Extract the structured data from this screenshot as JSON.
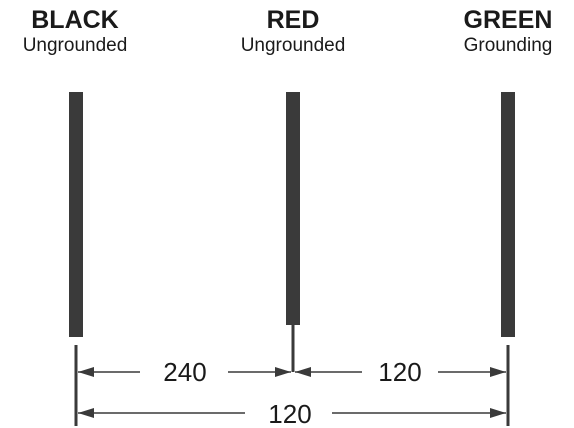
{
  "conductors": [
    {
      "name": "BLACK",
      "role": "Ungrounded"
    },
    {
      "name": "RED",
      "role": "Ungrounded"
    },
    {
      "name": "GREEN",
      "role": "Grounding"
    }
  ],
  "measurements": {
    "black_to_red": "240",
    "red_to_green": "120",
    "black_to_green": "120"
  },
  "colors": {
    "line": "#3a3a3a",
    "text": "#1a1a1a"
  }
}
